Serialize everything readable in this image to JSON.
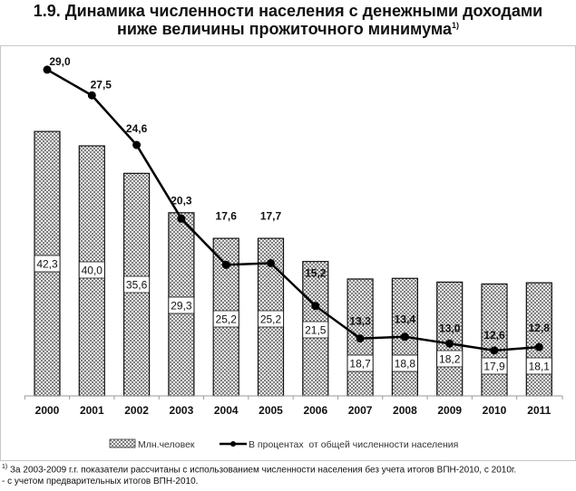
{
  "title_line1": "1.9. Динамика численности населения с денежными доходами",
  "title_line2": "ниже величины прожиточного минимума",
  "title_footnote_mark": "1)",
  "footnote_mark": "1)",
  "footnote_line1": " За 2003-2009 г.г. показатели рассчитаны с использованием численности населения без учета итогов ВПН-2010, с 2010г.",
  "footnote_line2": "- с учетом предварительных итогов ВПН-2010.",
  "chart_data": {
    "type": "bar+line",
    "categories": [
      "2000",
      "2001",
      "2002",
      "2003",
      "2004",
      "2005",
      "2006",
      "2007",
      "2008",
      "2009",
      "2010",
      "2011"
    ],
    "series": [
      {
        "name": "Млн.человек",
        "type": "bar",
        "pattern": "crosshatch",
        "values": [
          42.3,
          40.0,
          35.6,
          29.3,
          25.2,
          25.2,
          21.5,
          18.7,
          18.8,
          18.2,
          17.9,
          18.1
        ],
        "labels": [
          "42,3",
          "40,0",
          "35,6",
          "29,3",
          "25,2",
          "25,2",
          "21,5",
          "18,7",
          "18,8",
          "18,2",
          "17,9",
          "18,1"
        ]
      },
      {
        "name": "В процентах  от общей численности населения",
        "type": "line",
        "marker": "circle",
        "color": "#000000",
        "values": [
          29.0,
          27.5,
          24.6,
          20.3,
          17.6,
          17.7,
          15.2,
          13.3,
          13.4,
          13.0,
          12.6,
          12.8
        ],
        "labels": [
          "29,0",
          "27,5",
          "24,6",
          "20,3",
          "17,6",
          "17,7",
          "15,2",
          "13,3",
          "13,4",
          "13,0",
          "12,6",
          "12,8"
        ]
      }
    ],
    "legend": "bottom",
    "grid": false,
    "yaxis_visible": false
  }
}
